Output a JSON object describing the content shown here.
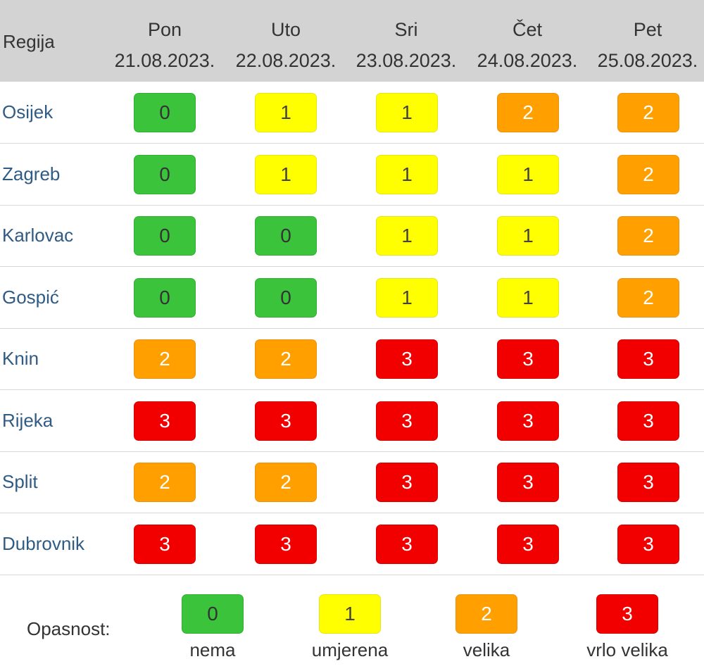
{
  "header": {
    "region_label": "Regija",
    "days": [
      {
        "day": "Pon",
        "date": "21.08.2023."
      },
      {
        "day": "Uto",
        "date": "22.08.2023."
      },
      {
        "day": "Sri",
        "date": "23.08.2023."
      },
      {
        "day": "Čet",
        "date": "24.08.2023."
      },
      {
        "day": "Pet",
        "date": "25.08.2023."
      }
    ]
  },
  "rows": [
    {
      "region": "Osijek",
      "levels": [
        "0",
        "1",
        "1",
        "2",
        "2"
      ]
    },
    {
      "region": "Zagreb",
      "levels": [
        "0",
        "1",
        "1",
        "1",
        "2"
      ]
    },
    {
      "region": "Karlovac",
      "levels": [
        "0",
        "0",
        "1",
        "1",
        "2"
      ]
    },
    {
      "region": "Gospić",
      "levels": [
        "0",
        "0",
        "1",
        "1",
        "2"
      ]
    },
    {
      "region": "Knin",
      "levels": [
        "2",
        "2",
        "3",
        "3",
        "3"
      ]
    },
    {
      "region": "Rijeka",
      "levels": [
        "3",
        "3",
        "3",
        "3",
        "3"
      ]
    },
    {
      "region": "Split",
      "levels": [
        "2",
        "2",
        "3",
        "3",
        "3"
      ]
    },
    {
      "region": "Dubrovnik",
      "levels": [
        "3",
        "3",
        "3",
        "3",
        "3"
      ]
    }
  ],
  "legend": {
    "label": "Opasnost:",
    "items": [
      {
        "value": "0",
        "text": "nema"
      },
      {
        "value": "1",
        "text": "umjerena"
      },
      {
        "value": "2",
        "text": "velika"
      },
      {
        "value": "3",
        "text": "vrlo velika"
      }
    ]
  },
  "colors": {
    "level_0": "#3bc43b",
    "level_1": "#ffff00",
    "level_2": "#ff9f00",
    "level_3": "#f20000",
    "header_bg": "#d3d3d3",
    "region_text": "#2f5b84"
  }
}
